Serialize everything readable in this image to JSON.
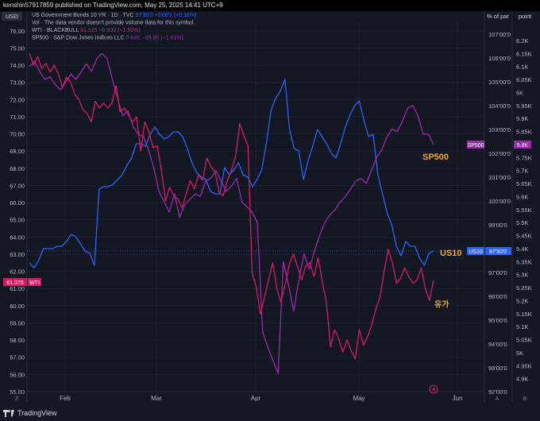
{
  "header": {
    "publisher_line": "kenshin57917859 published on TradingView.com, May 25, 2025 14:41 UTC+9"
  },
  "footer": {
    "brand": "TradingView"
  },
  "chart_data": {
    "type": "line",
    "axis_headers": {
      "left": "USD",
      "right_pct": "% of par",
      "right_point": "point"
    },
    "legend": [
      {
        "name": "US Government Bonds 10 YR · 1D · TVC",
        "value": "97'30'0",
        "change": "+0'08'1 (+0.16%)",
        "color": "#2962ff"
      },
      {
        "name": "Vol · The data vendor doesn't provide volume data for this symbol.",
        "value": "",
        "change": "",
        "color": "#b2b5be"
      },
      {
        "name": "WTI · BLACKBULL",
        "value": "61.015",
        "change": "−0.930 (−1.50%)",
        "color": "#d81b60"
      },
      {
        "name": "SP500 · S&P Dow Jones Indices LLC",
        "value": "5.84K",
        "change": "−95.85 (−1.61%)",
        "color": "#9c27b0"
      }
    ],
    "x_labels": [
      "Feb",
      "Mar",
      "Apr",
      "May",
      "Jun"
    ],
    "left_axis": {
      "min": 55,
      "max": 76.5,
      "ticks": [
        "76.00",
        "75.00",
        "74.00",
        "73.00",
        "72.00",
        "71.00",
        "70.00",
        "69.00",
        "68.00",
        "67.00",
        "66.00",
        "65.00",
        "64.00",
        "63.00",
        "62.00",
        "61.00",
        "60.00",
        "59.00",
        "58.00",
        "57.00",
        "56.00",
        "55.00"
      ]
    },
    "pct_axis": {
      "min": 92,
      "max": 107.5,
      "ticks": [
        "107'00'0",
        "106'00'0",
        "105'00'0",
        "104'00'0",
        "103'00'0",
        "102'00'0",
        "101'00'0",
        "100'00'0",
        "99'00'0",
        "98'00'0",
        "97'00'0",
        "96'00'0",
        "95'00'0",
        "94'00'0",
        "93'00'0",
        "92'00'0"
      ]
    },
    "point_axis": {
      "min": 4.85,
      "max": 6.27,
      "ticks": [
        "6.2K",
        "6.15K",
        "6.1K",
        "6.05K",
        "6K",
        "5.95K",
        "5.9K",
        "5.85K",
        "5.8K",
        "5.75K",
        "5.7K",
        "5.65K",
        "5.6K",
        "5.55K",
        "5.5K",
        "5.45K",
        "5.4K",
        "5.35K",
        "5.3K",
        "5.25K",
        "5.2K",
        "5.15K",
        "5.1K",
        "5.05K",
        "5K",
        "4.95K",
        "4.9K"
      ]
    },
    "series": [
      {
        "name": "SP500",
        "axis": "point",
        "color": "#9c27b0",
        "values": [
          6.1,
          6.12,
          6.08,
          6.05,
          6.06,
          6.03,
          6.01,
          6.04,
          6.07,
          6.05,
          6.08,
          6.11,
          6.08,
          6.13,
          6.15,
          6.13,
          6.05,
          5.98,
          5.91,
          5.93,
          5.87,
          5.84,
          5.83,
          5.78,
          5.71,
          5.62,
          5.58,
          5.54,
          5.61,
          5.52,
          5.57,
          5.59,
          5.61,
          5.6,
          5.66,
          5.67,
          5.7,
          5.66,
          5.62,
          5.64,
          5.67,
          5.58,
          5.56,
          5.54,
          5.5,
          5.08,
          5.02,
          4.97,
          4.92,
          5.35,
          5.26,
          5.16,
          5.28,
          5.38,
          5.32,
          5.39,
          5.45,
          5.5,
          5.53,
          5.55,
          5.58,
          5.6,
          5.63,
          5.66,
          5.67,
          5.65,
          5.7,
          5.75,
          5.78,
          5.83,
          5.86,
          5.85,
          5.89,
          5.94,
          5.95,
          5.91,
          5.84,
          5.84,
          5.8
        ],
        "tag": "5.8K",
        "annotation": "SP500"
      },
      {
        "name": "US10",
        "axis": "pct",
        "color": "#2962ff",
        "values": [
          97.4,
          97.2,
          97.5,
          98,
          98,
          98,
          98.1,
          98.1,
          98.3,
          98.6,
          98.5,
          98.2,
          97.9,
          97.8,
          97.3,
          100.5,
          100.6,
          100.6,
          100.7,
          100.9,
          101.1,
          101.5,
          101.8,
          102.4,
          102.4,
          102.3,
          102.8,
          103.1,
          102.8,
          102.6,
          102.7,
          102.9,
          102.9,
          102.7,
          102.2,
          101.6,
          101.2,
          101,
          100.9,
          100.4,
          100.3,
          100.3,
          101.4,
          101.1,
          101.3,
          101.6,
          101.1,
          101,
          100.6,
          100.9,
          101.3,
          102.4,
          103.8,
          104.3,
          104.6,
          105.1,
          103,
          102.2,
          102.1,
          100.9,
          101.7,
          102.3,
          103,
          102.7,
          102.4,
          102,
          101.8,
          102.4,
          103.1,
          103.6,
          104,
          104.2,
          103.4,
          102.7,
          102.8,
          101.1,
          100.3,
          99.5,
          99,
          98.1,
          97.7,
          98.3,
          98.1,
          98.1,
          97.6,
          97.3,
          97.8,
          97.9
        ],
        "tag": "97'30'0",
        "annotation": "US10"
      },
      {
        "name": "WTI",
        "axis": "left",
        "color": "#d81b60",
        "values": [
          74.7,
          74,
          74.5,
          73.8,
          74.1,
          73.6,
          74,
          73.5,
          72.7,
          73.3,
          73,
          72.3,
          72,
          71.4,
          71.2,
          70.7,
          71.9,
          71.5,
          71.8,
          71.5,
          71.8,
          72.8,
          71.3,
          71.5,
          71.1,
          70.7,
          71,
          69,
          70.7,
          70.1,
          69.2,
          69.3,
          67.9,
          66.1,
          66.9,
          66.4,
          66.2,
          65.7,
          66.5,
          67.3,
          66.8,
          67.6,
          67.3,
          68.6,
          68.1,
          67.8,
          66.6,
          66.4,
          67.3,
          67.9,
          68.7,
          70.6,
          69.9,
          69.3,
          61.9,
          61.1,
          59.5,
          60.5,
          61.5,
          62.5,
          61,
          60.2,
          61.2,
          62.4,
          63,
          62.3,
          61.5,
          62.3,
          62.5,
          61.7,
          62.8,
          61.4,
          60.2,
          57.6,
          58.6,
          58.1,
          57.3,
          58,
          57.4,
          56.9,
          58.6,
          57.7,
          58.2,
          58.9,
          59.8,
          60.5,
          62,
          63.3,
          62.5,
          61.3,
          61.6,
          62.2,
          61.7,
          61.3,
          61.5,
          62.2,
          61,
          60.3,
          61.5
        ],
        "tag": "61.375",
        "tag_label": "WTI",
        "annotation": "유가"
      }
    ]
  }
}
